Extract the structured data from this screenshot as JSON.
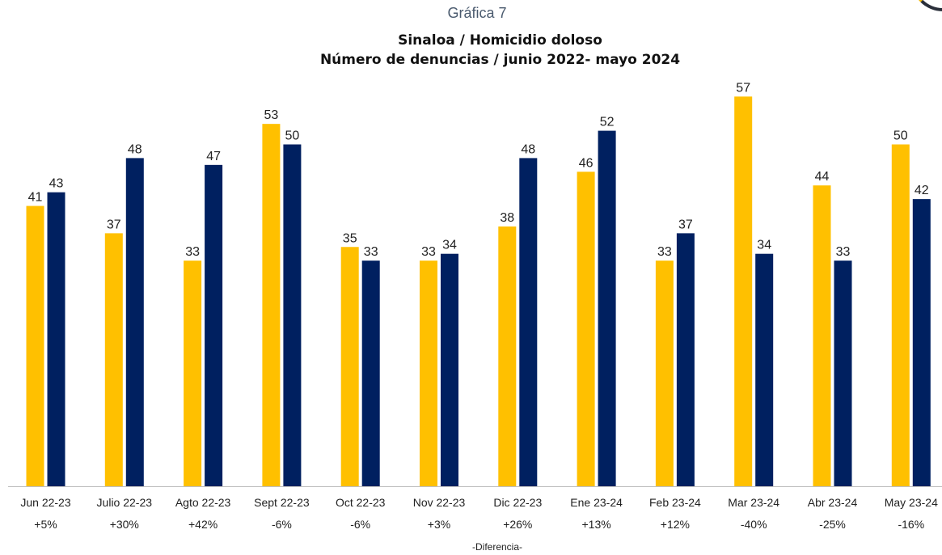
{
  "page_label": "Gráfica 7",
  "title_line1": "Sinaloa / Homicidio doloso",
  "title_line2": "Número de denuncias / junio 2022- mayo 2024",
  "footer": "-Diferencia-",
  "colors": {
    "series_2022_23": "#FFC000",
    "series_2023_24": "#002060",
    "axis": "#bfbfbf"
  },
  "chart_data": {
    "type": "bar",
    "title": "Sinaloa / Homicidio doloso — Número de denuncias / junio 2022- mayo 2024",
    "categories": [
      "Jun 22-23",
      "Julio 22-23",
      "Agto 22-23",
      "Sept 22-23",
      "Oct 22-23",
      "Nov 22-23",
      "Dic 22-23",
      "Ene 23-24",
      "Feb 23-24",
      "Mar 23-24",
      "Abr 23-24",
      "May 23-24"
    ],
    "differences": [
      "+5%",
      "+30%",
      "+42%",
      "-6%",
      "-6%",
      "+3%",
      "+26%",
      "+13%",
      "+12%",
      "-40%",
      "-25%",
      "-16%"
    ],
    "series": [
      {
        "values": [
          41,
          37,
          33,
          53,
          35,
          33,
          38,
          46,
          33,
          57,
          44,
          50
        ]
      },
      {
        "values": [
          43,
          48,
          47,
          50,
          33,
          34,
          48,
          52,
          37,
          34,
          33,
          42
        ]
      }
    ],
    "ylim": [
      0,
      60
    ],
    "grid": false,
    "legend": "none"
  }
}
